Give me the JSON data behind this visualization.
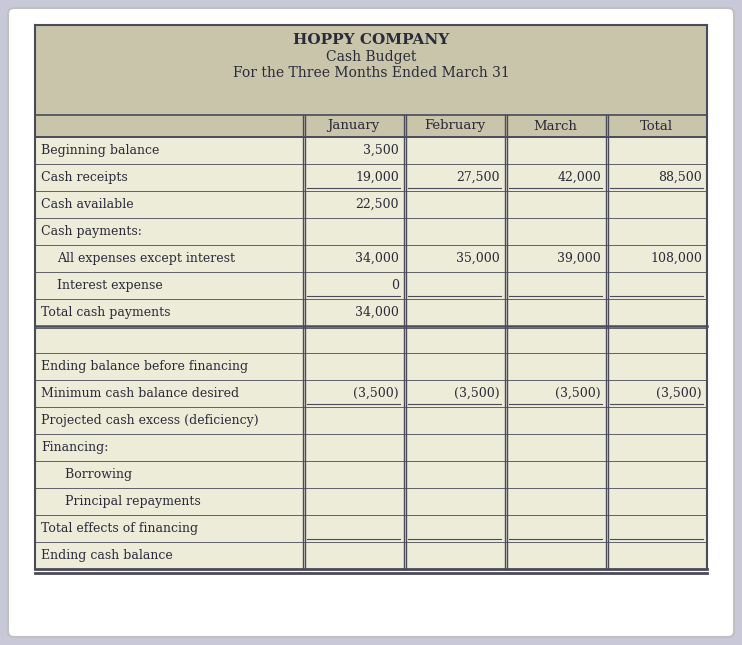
{
  "title_line1": "HOPPY COMPANY",
  "title_line2": "Cash Budget",
  "title_line3": "For the Three Months Ended March 31",
  "col_headers": [
    "January",
    "February",
    "March",
    "Total"
  ],
  "rows": [
    {
      "label": "Beginning balance",
      "indent": 0,
      "values": [
        "3,500",
        "",
        "",
        ""
      ],
      "bottom_line": false,
      "thick_bottom": false
    },
    {
      "label": "Cash receipts",
      "indent": 0,
      "values": [
        "19,000",
        "27,500",
        "42,000",
        "88,500"
      ],
      "bottom_line": true,
      "thick_bottom": false
    },
    {
      "label": "Cash available",
      "indent": 0,
      "values": [
        "22,500",
        "",
        "",
        ""
      ],
      "bottom_line": false,
      "thick_bottom": false
    },
    {
      "label": "Cash payments:",
      "indent": 0,
      "values": [
        "",
        "",
        "",
        ""
      ],
      "bottom_line": false,
      "thick_bottom": false
    },
    {
      "label": "All expenses except interest",
      "indent": 1,
      "values": [
        "34,000",
        "35,000",
        "39,000",
        "108,000"
      ],
      "bottom_line": false,
      "thick_bottom": false
    },
    {
      "label": "Interest expense",
      "indent": 1,
      "values": [
        "0",
        "",
        "",
        ""
      ],
      "bottom_line": true,
      "thick_bottom": false
    },
    {
      "label": "Total cash payments",
      "indent": 0,
      "values": [
        "34,000",
        "",
        "",
        ""
      ],
      "bottom_line": false,
      "thick_bottom": true
    },
    {
      "label": "",
      "indent": 0,
      "values": [
        "",
        "",
        "",
        ""
      ],
      "bottom_line": false,
      "thick_bottom": false
    },
    {
      "label": "Ending balance before financing",
      "indent": 0,
      "values": [
        "",
        "",
        "",
        ""
      ],
      "bottom_line": false,
      "thick_bottom": false
    },
    {
      "label": "Minimum cash balance desired",
      "indent": 0,
      "values": [
        "(3,500)",
        "(3,500)",
        "(3,500)",
        "(3,500)"
      ],
      "bottom_line": true,
      "thick_bottom": false
    },
    {
      "label": "Projected cash excess (deficiency)",
      "indent": 0,
      "values": [
        "",
        "",
        "",
        ""
      ],
      "bottom_line": false,
      "thick_bottom": false
    },
    {
      "label": "Financing:",
      "indent": 0,
      "values": [
        "",
        "",
        "",
        ""
      ],
      "bottom_line": false,
      "thick_bottom": false
    },
    {
      "label": "  Borrowing",
      "indent": 1,
      "values": [
        "",
        "",
        "",
        ""
      ],
      "bottom_line": false,
      "thick_bottom": false
    },
    {
      "label": "  Principal repayments",
      "indent": 1,
      "values": [
        "",
        "",
        "",
        ""
      ],
      "bottom_line": false,
      "thick_bottom": false
    },
    {
      "label": "Total effects of financing",
      "indent": 0,
      "values": [
        "",
        "",
        "",
        ""
      ],
      "bottom_line": true,
      "thick_bottom": false
    },
    {
      "label": "Ending cash balance",
      "indent": 0,
      "values": [
        "",
        "",
        "",
        ""
      ],
      "bottom_line": false,
      "thick_bottom": false,
      "double_bottom": true
    }
  ],
  "header_bg": "#c9c5aa",
  "table_bg": "#edecd9",
  "border_color": "#4a4a5a",
  "text_color": "#2a2a3a",
  "fig_bg": "#c8c8d8",
  "card_bg": "#ffffff",
  "card_border": "#c0c0c0"
}
